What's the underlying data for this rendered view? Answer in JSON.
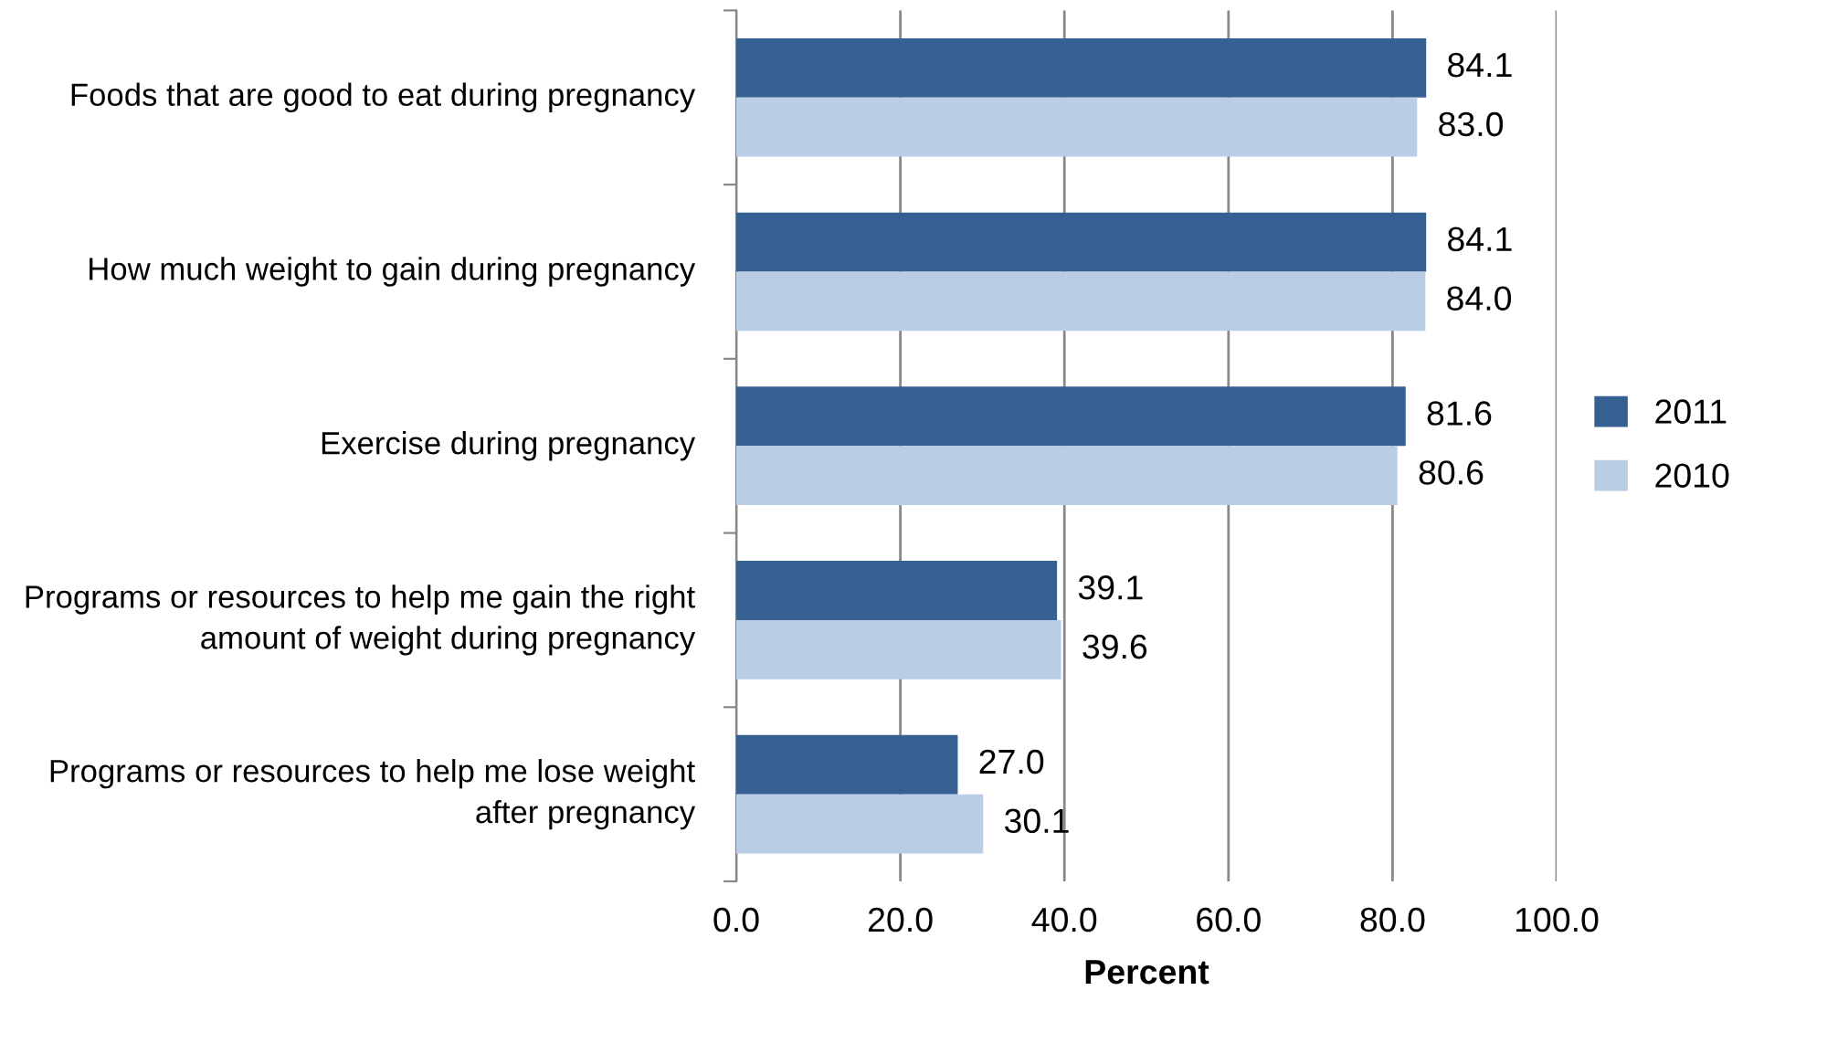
{
  "chart_data": {
    "type": "bar",
    "orientation": "horizontal",
    "xlabel": "Percent",
    "categories": [
      "Foods that are good to eat during pregnancy",
      "How much weight to gain during pregnancy",
      "Exercise during pregnancy",
      "Programs or resources to help me gain the right amount of weight during pregnancy",
      "Programs or resources to help me lose weight after pregnancy"
    ],
    "series": [
      {
        "name": "2011",
        "color": "#376092",
        "values": [
          84.1,
          84.1,
          81.6,
          39.1,
          27.0
        ],
        "value_labels": [
          "84.1",
          "84.1",
          "81.6",
          "39.1",
          "27.0"
        ]
      },
      {
        "name": "2010",
        "color": "#b9cde5",
        "values": [
          83.0,
          84.0,
          80.6,
          39.6,
          30.1
        ],
        "value_labels": [
          "83.0",
          "84.0",
          "80.6",
          "39.6",
          "30.1"
        ]
      }
    ],
    "xlim": [
      0,
      100
    ],
    "xticks": [
      {
        "value": 0,
        "label": "0.0"
      },
      {
        "value": 20,
        "label": "20.0"
      },
      {
        "value": 40,
        "label": "40.0"
      },
      {
        "value": 60,
        "label": "60.0"
      },
      {
        "value": 80,
        "label": "80.0"
      },
      {
        "value": 100,
        "label": "100.0"
      }
    ],
    "grid": "x",
    "legend": "right"
  }
}
